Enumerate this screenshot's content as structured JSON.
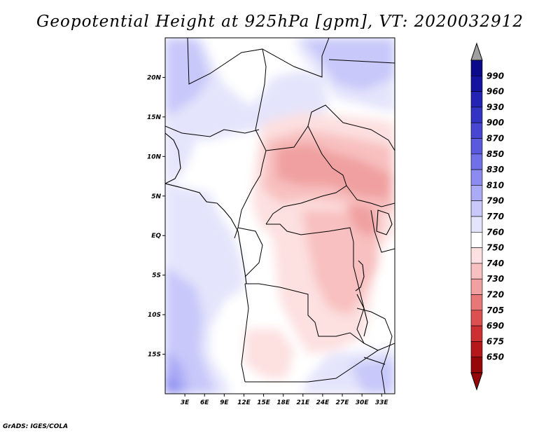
{
  "title": "Geopotential Height at 925hPa [gpm], VT: 2020032912",
  "credit": "GrADS: IGES/COLA",
  "map": {
    "type": "filled-contour-map",
    "region": "Central Africa",
    "variable": "Geopotential Height at 925hPa",
    "units": "gpm",
    "lon_range": [
      0,
      35
    ],
    "lat_range": [
      -20,
      25
    ],
    "lat_ticks": [
      {
        "value": 20,
        "label": "20N"
      },
      {
        "value": 15,
        "label": "15N"
      },
      {
        "value": 10,
        "label": "10N"
      },
      {
        "value": 5,
        "label": "5N"
      },
      {
        "value": 0,
        "label": "EQ"
      },
      {
        "value": -5,
        "label": "5S"
      },
      {
        "value": -10,
        "label": "10S"
      },
      {
        "value": -15,
        "label": "15S"
      }
    ],
    "lon_ticks": [
      {
        "value": 3,
        "label": "3E"
      },
      {
        "value": 6,
        "label": "6E"
      },
      {
        "value": 9,
        "label": "9E"
      },
      {
        "value": 12,
        "label": "12E"
      },
      {
        "value": 15,
        "label": "15E"
      },
      {
        "value": 18,
        "label": "18E"
      },
      {
        "value": 21,
        "label": "21E"
      },
      {
        "value": 24,
        "label": "24E"
      },
      {
        "value": 27,
        "label": "27E"
      },
      {
        "value": 30,
        "label": "30E"
      },
      {
        "value": 33,
        "label": "33E"
      }
    ]
  },
  "colorbar": {
    "labels": [
      "990",
      "960",
      "930",
      "900",
      "870",
      "850",
      "830",
      "810",
      "790",
      "770",
      "760",
      "750",
      "740",
      "730",
      "720",
      "705",
      "690",
      "675",
      "650"
    ],
    "colors": [
      "#0a0a8a",
      "#1414a0",
      "#2424b4",
      "#3434c4",
      "#4646d2",
      "#5a5ade",
      "#7070e8",
      "#8c8cf0",
      "#aaaaf6",
      "#c8c8fa",
      "#e4e4fc",
      "#ffffff",
      "#fde0e0",
      "#f8c0c0",
      "#f0a0a0",
      "#e87878",
      "#dc5050",
      "#cc3030",
      "#b41818",
      "#960808"
    ],
    "top_arrow_color": "#a0a0a0",
    "bottom_arrow_color": "#960808"
  }
}
